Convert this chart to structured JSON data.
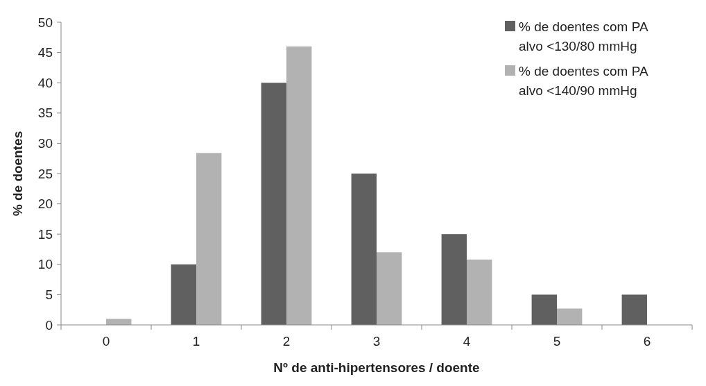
{
  "chart_data": {
    "type": "bar",
    "xlabel": "Nº de anti-hipertensores / doente",
    "ylabel": "% de doentes",
    "categories": [
      "0",
      "1",
      "2",
      "3",
      "4",
      "5",
      "6"
    ],
    "series": [
      {
        "name": "% de doentes com PA alvo <130/80 mmHg",
        "color": "#606060",
        "values": [
          0,
          10,
          40,
          25,
          15,
          5,
          5
        ]
      },
      {
        "name": "% de doentes com PA alvo <140/90 mmHg",
        "color": "#b2b2b2",
        "values": [
          1,
          28.4,
          46,
          12,
          10.8,
          2.7,
          0
        ]
      }
    ],
    "ylim": [
      0,
      50
    ],
    "yticks": [
      0,
      5,
      10,
      15,
      20,
      25,
      30,
      35,
      40,
      45,
      50
    ],
    "grid": false,
    "legend": "top right"
  }
}
